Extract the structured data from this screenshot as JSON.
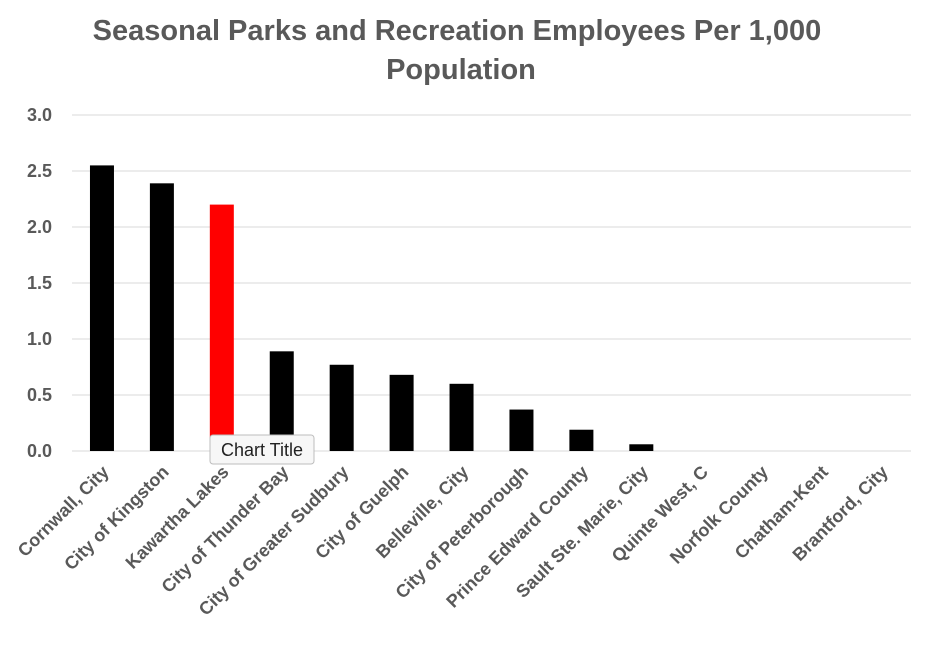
{
  "chart_data": {
    "type": "bar",
    "title": "Seasonal Parks and Recreation Employees Per 1,000 Population",
    "title_lines": [
      "Seasonal Parks and Recreation Employees Per 1,000",
      "Population"
    ],
    "categories": [
      "Cornwall, City",
      "City of Kingston",
      "Kawartha Lakes",
      "City of Thunder Bay",
      "City of Greater Sudbury",
      "City of Guelph",
      "Belleville, City",
      "City of Peterborough",
      "Prince Edward County",
      "Sault Ste. Marie, City",
      "Quinte West, C",
      "Norfolk County",
      "Chatham-Kent",
      "Brantford, City"
    ],
    "values": [
      2.55,
      2.39,
      2.2,
      0.89,
      0.77,
      0.68,
      0.6,
      0.37,
      0.19,
      0.06,
      0,
      0,
      0,
      0
    ],
    "bar_colors": [
      "#000000",
      "#000000",
      "#ff0000",
      "#000000",
      "#000000",
      "#000000",
      "#000000",
      "#000000",
      "#000000",
      "#000000",
      "#000000",
      "#000000",
      "#000000",
      "#000000"
    ],
    "highlight_category": "Kawartha Lakes",
    "highlight_color": "#ff0000",
    "default_color": "#000000",
    "xlabel": "",
    "ylabel": "",
    "ylim": [
      0,
      3.0
    ],
    "yticks": [
      "0.0",
      "0.5",
      "1.0",
      "1.5",
      "2.0",
      "2.5",
      "3.0"
    ],
    "grid": true,
    "legend": "none"
  },
  "tooltip": {
    "text": "Chart Title"
  }
}
